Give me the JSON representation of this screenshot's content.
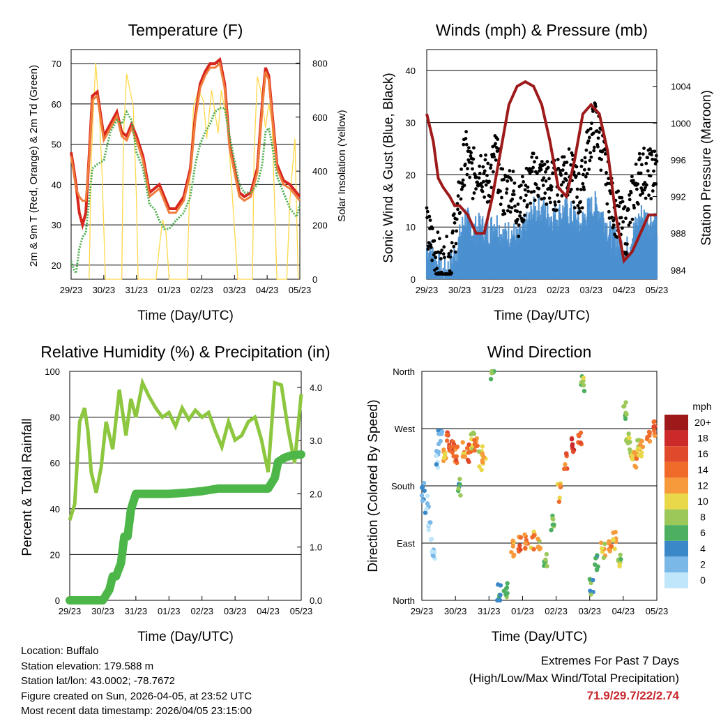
{
  "chart_data": [
    {
      "type": "line",
      "title": "Temperature (F)",
      "xlabel": "Time (Day/UTC)",
      "ylabel": "2m & 9m T (Red, Orange) & 2m Td (Green)",
      "ylabel_right": "Solar Insolation (Yellow)",
      "xticks": [
        "29/23",
        "30/23",
        "31/23",
        "01/23",
        "02/23",
        "03/23",
        "04/23",
        "05/23"
      ],
      "yticks": [
        20,
        30,
        40,
        50,
        60,
        70
      ],
      "yticks_right": [
        0,
        200,
        400,
        600,
        800
      ],
      "ylim": [
        16.5,
        73.5
      ],
      "ylim_right": [
        0,
        850
      ],
      "x": [
        0,
        0.08,
        0.15,
        0.25,
        0.35,
        0.45,
        0.55,
        0.65,
        0.8,
        1,
        1.2,
        1.4,
        1.55,
        1.7,
        1.85,
        2,
        2.2,
        2.4,
        2.55,
        2.7,
        2.85,
        3,
        3.2,
        3.45,
        3.65,
        3.8,
        3.95,
        4.1,
        4.25,
        4.4,
        4.55,
        4.7,
        4.85,
        5,
        5.15,
        5.3,
        5.5,
        5.7,
        5.85,
        5.95,
        6.05,
        6.15,
        6.3,
        6.5,
        6.7,
        6.9,
        7
      ],
      "series": [
        {
          "name": "2m T",
          "color": "#d7261e",
          "values": [
            48,
            44,
            40,
            33,
            30,
            33,
            47,
            62,
            63,
            52,
            55,
            58,
            53,
            52,
            55,
            52,
            47,
            38,
            39,
            40,
            37,
            34,
            34,
            37,
            44,
            57,
            65,
            68,
            70,
            70,
            71,
            65,
            50,
            44,
            38,
            37,
            38,
            44,
            60,
            69,
            67,
            58,
            45,
            41,
            40,
            38,
            37
          ]
        },
        {
          "name": "9m T",
          "color": "#f07c3c",
          "values": [
            47,
            43,
            39,
            37,
            36,
            36,
            46,
            61,
            62,
            51,
            54,
            57,
            52,
            51,
            54,
            51,
            46,
            37,
            38,
            39,
            36,
            33,
            33,
            36,
            43,
            56,
            64,
            67,
            69,
            69,
            70,
            64,
            49,
            43,
            37,
            36,
            37,
            43,
            59,
            68,
            66,
            57,
            44,
            40,
            39,
            37,
            36
          ]
        },
        {
          "name": "2m Td",
          "color": "#4cae4c",
          "values": [
            21,
            19,
            18,
            24,
            27,
            28,
            36,
            44,
            45,
            46,
            53,
            56,
            55,
            58,
            56,
            48,
            44,
            35,
            34,
            31,
            29,
            29,
            31,
            33,
            37,
            45,
            50,
            53,
            55,
            58,
            59,
            59,
            52,
            46,
            40,
            38,
            38,
            40,
            45,
            53,
            54,
            50,
            42,
            38,
            34,
            32,
            35
          ]
        }
      ],
      "solar": {
        "name": "Solar Insolation",
        "color": "#ffd84a",
        "x": [
          0.55,
          0.62,
          0.75,
          0.85,
          0.95,
          1.05,
          1.55,
          1.6,
          1.7,
          1.8,
          1.9,
          2,
          2.05,
          2.6,
          2.7,
          2.8,
          2.9,
          3,
          3.55,
          3.65,
          3.75,
          3.9,
          4.05,
          4.15,
          4.3,
          4.5,
          4.6,
          4.8,
          5.1,
          5.55,
          5.6,
          5.7,
          5.8,
          5.95,
          6.05,
          6.15,
          6.3,
          6.6,
          6.7,
          6.85,
          6.95
        ],
        "values": [
          0,
          450,
          800,
          650,
          380,
          0,
          0,
          520,
          760,
          700,
          640,
          300,
          0,
          0,
          120,
          220,
          180,
          0,
          0,
          420,
          640,
          700,
          660,
          520,
          700,
          540,
          700,
          560,
          0,
          0,
          460,
          750,
          700,
          560,
          650,
          580,
          0,
          0,
          300,
          520,
          0
        ]
      }
    },
    {
      "type": "scatter",
      "title": "Winds (mph) & Pressure (mb)",
      "xlabel": "Time (Day/UTC)",
      "ylabel": "Sonic Wind & Gust (Blue, Black)",
      "ylabel_right": "Station Pressure (Maroon)",
      "xticks": [
        "29/23",
        "30/23",
        "31/23",
        "01/23",
        "02/23",
        "03/23",
        "04/23",
        "05/23"
      ],
      "yticks": [
        0,
        10,
        20,
        30,
        40
      ],
      "yticks_right": [
        984,
        988,
        992,
        996,
        1000,
        1004
      ],
      "ylim": [
        0,
        44
      ],
      "ylim_right": [
        983,
        1008
      ],
      "x": [
        0,
        0.2,
        0.35,
        0.5,
        0.7,
        0.85,
        1,
        1.25,
        1.5,
        1.75,
        2,
        2.25,
        2.5,
        2.75,
        3,
        3.25,
        3.5,
        3.75,
        4,
        4.25,
        4.5,
        4.75,
        5,
        5.25,
        5.5,
        5.75,
        6,
        6.25,
        6.5,
        6.75,
        7
      ],
      "series": [
        {
          "name": "Sonic Wind",
          "color": "#4a90d0",
          "values": [
            6,
            4,
            1,
            2,
            6,
            12,
            9,
            10,
            9,
            11,
            8,
            9,
            7,
            10,
            13,
            13,
            12,
            12,
            13,
            12,
            10,
            13,
            14,
            12,
            8,
            7,
            5,
            9,
            12,
            11,
            11
          ]
        },
        {
          "name": "Gust",
          "color": "#000000",
          "values": [
            9,
            6,
            2,
            4,
            12,
            24,
            20,
            22,
            18,
            24,
            16,
            18,
            13,
            17,
            20,
            19,
            18,
            18,
            22,
            19,
            16,
            25,
            30,
            24,
            15,
            12,
            9,
            17,
            21,
            20,
            21
          ]
        },
        {
          "name": "Station Pressure",
          "color": "#9e1a1a",
          "values": [
            1001,
            998,
            994,
            993,
            992,
            991,
            991,
            990,
            988,
            988,
            992,
            997,
            1002,
            1004,
            1004.5,
            1004,
            1002,
            998,
            993,
            992,
            996,
            1001,
            1002,
            1001,
            997,
            990,
            985,
            986,
            988,
            990,
            990
          ]
        }
      ]
    },
    {
      "type": "line",
      "title": "Relative Humidity (%) & Precipitation (in)",
      "xlabel": "Time (Day/UTC)",
      "ylabel": "Percent & Total Rainfall",
      "xticks": [
        "29/23",
        "30/23",
        "31/23",
        "01/23",
        "02/23",
        "03/23",
        "04/23",
        "05/23"
      ],
      "yticks": [
        0,
        20,
        40,
        60,
        80,
        100
      ],
      "yticks_right": [
        "0.0",
        "1.0",
        "2.0",
        "3.0",
        "4.0"
      ],
      "ylim": [
        0,
        100
      ],
      "ylim_right": [
        0,
        4.3
      ],
      "series": [
        {
          "name": "Relative Humidity",
          "color": "#8dc63f",
          "x": [
            0,
            0.15,
            0.3,
            0.45,
            0.55,
            0.65,
            0.8,
            0.95,
            1.1,
            1.3,
            1.5,
            1.7,
            1.85,
            2,
            2.2,
            2.4,
            2.6,
            2.8,
            3,
            3.2,
            3.4,
            3.6,
            3.8,
            4,
            4.2,
            4.4,
            4.6,
            4.8,
            5,
            5.2,
            5.4,
            5.6,
            5.8,
            6,
            6.2,
            6.4,
            6.6,
            6.8,
            7
          ],
          "values": [
            35,
            42,
            78,
            84,
            74,
            56,
            47,
            58,
            78,
            66,
            92,
            72,
            88,
            80,
            95,
            89,
            84,
            80,
            82,
            76,
            84,
            79,
            83,
            80,
            82,
            74,
            67,
            78,
            70,
            72,
            78,
            80,
            70,
            56,
            95,
            94,
            75,
            60,
            90
          ]
        },
        {
          "name": "Total Precipitation",
          "color": "#4cb648",
          "x": [
            0,
            0.5,
            1.0,
            1.2,
            1.3,
            1.4,
            1.55,
            1.65,
            1.75,
            1.85,
            2,
            2.5,
            3,
            3.5,
            4,
            4.5,
            5,
            5.5,
            6,
            6.2,
            6.3,
            6.5,
            6.7,
            7
          ],
          "values": [
            0,
            0,
            0,
            0.2,
            0.45,
            0.45,
            0.7,
            1.2,
            1.2,
            1.7,
            2.0,
            2.0,
            2.0,
            2.02,
            2.05,
            2.1,
            2.1,
            2.1,
            2.1,
            2.3,
            2.6,
            2.68,
            2.72,
            2.74
          ]
        }
      ]
    },
    {
      "type": "scatter",
      "title": "Wind Direction",
      "xlabel": "Time (Day/UTC)",
      "ylabel": "Direction (Colored By Speed)",
      "xticks": [
        "29/23",
        "30/23",
        "31/23",
        "01/23",
        "02/23",
        "03/23",
        "04/23",
        "05/23"
      ],
      "yticks": [
        "North",
        "East",
        "South",
        "West",
        "North"
      ],
      "ylim": [
        0,
        360
      ],
      "colorbar_unit": "mph",
      "colorbar_labels": [
        "20+",
        "18",
        "16",
        "14",
        "12",
        "10",
        "8",
        "6",
        "4",
        "2",
        "0"
      ],
      "colorbar_colors": [
        "#9e1a1a",
        "#cc2a2a",
        "#e04a2a",
        "#f06a2a",
        "#f79a3c",
        "#e8d84a",
        "#9cc85a",
        "#4cb060",
        "#3a88c8",
        "#7ab8e8",
        "#bfe6fa"
      ],
      "x": [
        0.05,
        0.15,
        0.25,
        0.35,
        0.45,
        0.55,
        0.7,
        0.8,
        0.9,
        1.0,
        1.1,
        1.25,
        1.4,
        1.5,
        1.6,
        1.75,
        1.85,
        2.1,
        2.3,
        2.5,
        2.7,
        2.9,
        3.1,
        3.3,
        3.5,
        3.7,
        3.9,
        4.1,
        4.3,
        4.5,
        4.7,
        4.8,
        5.05,
        5.2,
        5.4,
        5.6,
        5.75,
        5.9,
        6.05,
        6.15,
        6.25,
        6.35,
        6.45,
        6.55,
        6.75,
        6.95
      ],
      "values": [
        170,
        150,
        110,
        70,
        220,
        260,
        230,
        250,
        240,
        230,
        180,
        240,
        230,
        250,
        250,
        220,
        230,
        360,
        10,
        15,
        80,
        85,
        90,
        95,
        90,
        60,
        120,
        170,
        220,
        240,
        250,
        340,
        20,
        60,
        80,
        90,
        95,
        60,
        300,
        250,
        230,
        220,
        240,
        240,
        250,
        270
      ],
      "speeds": [
        3,
        2,
        1,
        1,
        2,
        3,
        12,
        15,
        16,
        14,
        6,
        12,
        15,
        10,
        13,
        9,
        11,
        8,
        5,
        6,
        12,
        14,
        13,
        12,
        10,
        7,
        6,
        12,
        14,
        16,
        15,
        8,
        6,
        5,
        10,
        12,
        11,
        8,
        7,
        9,
        10,
        12,
        9,
        11,
        13,
        14
      ]
    }
  ],
  "info": {
    "location": "Location: Buffalo",
    "elevation": "Station elevation: 179.588 m",
    "latlon": "Station lat/lon: 43.0002; -78.7672",
    "created": "Figure created on Sun, 2026-04-05, at 23:52 UTC",
    "recent": "Most recent data timestamp: 2026/04/05 23:15:00"
  },
  "extremes": {
    "title": "Extremes For Past 7 Days",
    "subtitle": "(High/Low/Max Wind/Total Precipitation)",
    "values": "71.9/29.7/22/2.74"
  }
}
